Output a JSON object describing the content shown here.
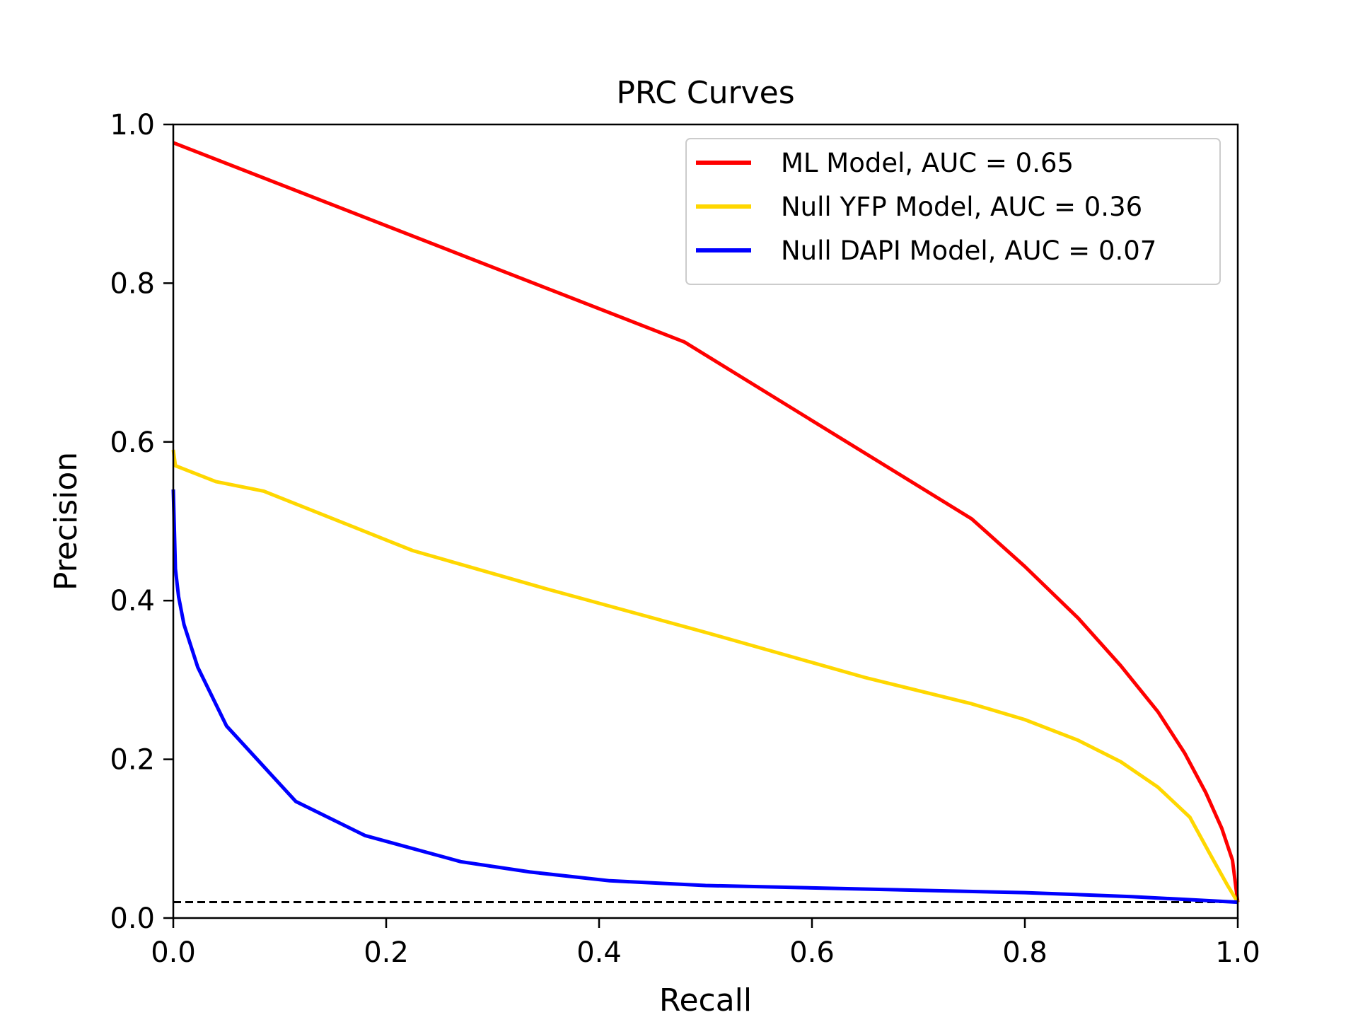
{
  "chart_data": {
    "type": "line",
    "title": "PRC Curves",
    "xlabel": "Recall",
    "ylabel": "Precision",
    "xlim": [
      0.0,
      1.0
    ],
    "ylim": [
      0.0,
      1.0
    ],
    "xticks": [
      "0.0",
      "0.2",
      "0.4",
      "0.6",
      "0.8",
      "1.0"
    ],
    "yticks": [
      "0.0",
      "0.2",
      "0.4",
      "0.6",
      "0.8",
      "1.0"
    ],
    "grid": false,
    "legend_position": "top-right",
    "baseline": {
      "y": 0.02,
      "style": "dashed",
      "color": "#000000"
    },
    "series": [
      {
        "name": "ML Model, AUC = 0.65",
        "color": "#ff0000",
        "x": [
          0.0,
          0.48,
          0.75,
          0.8,
          0.85,
          0.89,
          0.925,
          0.95,
          0.97,
          0.985,
          0.995,
          1.0
        ],
        "y": [
          0.977,
          0.726,
          0.503,
          0.443,
          0.378,
          0.318,
          0.26,
          0.208,
          0.158,
          0.113,
          0.073,
          0.02
        ]
      },
      {
        "name": "Null YFP Model, AUC = 0.36",
        "color": "#ffd700",
        "x": [
          0.0,
          0.002,
          0.04,
          0.085,
          0.225,
          0.35,
          0.5,
          0.65,
          0.75,
          0.8,
          0.85,
          0.89,
          0.925,
          0.955,
          0.975,
          0.99,
          1.0
        ],
        "y": [
          0.59,
          0.57,
          0.55,
          0.538,
          0.463,
          0.415,
          0.36,
          0.303,
          0.27,
          0.25,
          0.224,
          0.197,
          0.165,
          0.127,
          0.078,
          0.042,
          0.02
        ]
      },
      {
        "name": "Null DAPI Model, AUC = 0.07",
        "color": "#0000ff",
        "x": [
          0.0,
          0.002,
          0.005,
          0.01,
          0.023,
          0.05,
          0.115,
          0.18,
          0.27,
          0.335,
          0.41,
          0.5,
          0.6,
          0.8,
          0.9,
          1.0
        ],
        "y": [
          0.54,
          0.44,
          0.405,
          0.37,
          0.316,
          0.242,
          0.147,
          0.104,
          0.071,
          0.058,
          0.047,
          0.041,
          0.038,
          0.032,
          0.027,
          0.02
        ]
      }
    ]
  }
}
